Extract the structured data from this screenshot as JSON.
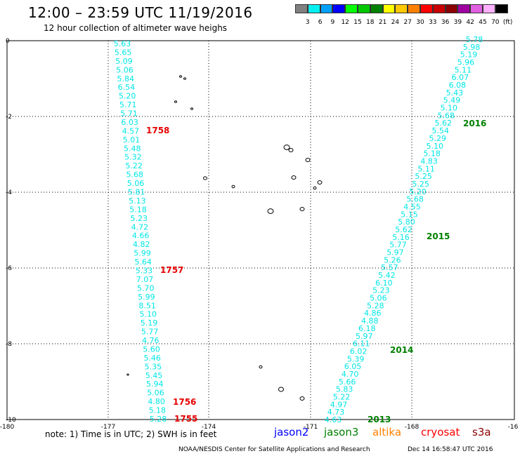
{
  "header": {
    "title": "12:00 – 23:59 UTC 11/19/2016",
    "subtitle": "12 hour collection of altimeter wave heighs"
  },
  "color_scale": {
    "labels": [
      "3",
      "6",
      "9",
      "12",
      "15",
      "18",
      "21",
      "24",
      "27",
      "30",
      "33",
      "36",
      "39",
      "42",
      "45",
      "70",
      "(ft)"
    ],
    "colors": [
      "#808080",
      "#00f0f0",
      "#00a0ff",
      "#0000ff",
      "#00ff00",
      "#00c800",
      "#008000",
      "#ffff00",
      "#ffc800",
      "#ff8000",
      "#ff0000",
      "#c80000",
      "#8b0000",
      "#a000a0",
      "#e060e0",
      "#ffb0ff",
      "#000000"
    ]
  },
  "map": {
    "x_ticks": [
      "-180",
      "-177",
      "-174",
      "-171",
      "-168",
      "-16"
    ],
    "y_ticks": [
      "0",
      "-2",
      "-4",
      "-6",
      "-8",
      "-10"
    ],
    "track_west": [
      "5.63",
      "5.65",
      "5.09",
      "5.06",
      "5.84",
      "6.54",
      "5.20",
      "5.71",
      "5.71",
      "6.03",
      "4.57",
      "5.01",
      "5.48",
      "5.32",
      "5.22",
      "5.68",
      "5.06",
      "5.81",
      "5.13",
      "5.18",
      "5.23",
      "4.72",
      "4.66",
      "4.82",
      "5.99",
      "5.64",
      "5.33",
      "7.07",
      "5.70",
      "5.99",
      "8.51",
      "5.10",
      "5.19",
      "5.77",
      "4.76",
      "5.60",
      "5.46",
      "5.35",
      "5.45",
      "5.94",
      "5.06",
      "4.80",
      "5.18",
      "5.28"
    ],
    "track_east": [
      "5.78",
      "5.98",
      "5.19",
      "5.96",
      "5.11",
      "6.07",
      "6.08",
      "5.43",
      "5.49",
      "5.10",
      "5.68",
      "5.62",
      "5.54",
      "5.29",
      "5.10",
      "5.18",
      "4.83",
      "5.11",
      "5.25",
      "5.25",
      "5.20",
      "5.68",
      "4.55",
      "5.15",
      "5.80",
      "5.62",
      "5.16",
      "5.77",
      "5.97",
      "5.26",
      "5.57",
      "5.42",
      "6.10",
      "5.23",
      "5.06",
      "5.28",
      "4.86",
      "4.88",
      "6.18",
      "5.97",
      "6.11",
      "6.02",
      "5.39",
      "6.05",
      "4.70",
      "5.66",
      "5.83",
      "5.22",
      "4.97",
      "4.73",
      "4.63"
    ],
    "time_labels": [
      "1758",
      "1757",
      "1756",
      "1755"
    ],
    "year_labels": [
      "2016",
      "2015",
      "2014",
      "2013"
    ]
  },
  "note": "note: 1) Time is in UTC; 2) SWH is in feet",
  "legend": [
    {
      "label": "jason2",
      "color": "#0000ff"
    },
    {
      "label": "jason3",
      "color": "#008000"
    },
    {
      "label": "altika",
      "color": "#ff8000"
    },
    {
      "label": "cryosat",
      "color": "#ff0000"
    },
    {
      "label": "s3a",
      "color": "#8b0000"
    }
  ],
  "footer": {
    "credit": "NOAA/NESDIS Center for Satellite Applications and Research",
    "timestamp": "Dec 14 16:58:47 UTC 2016"
  }
}
